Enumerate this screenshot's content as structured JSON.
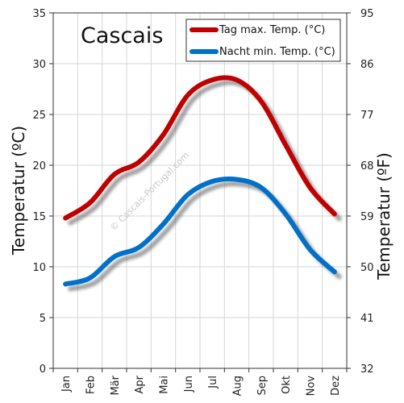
{
  "chart_data": {
    "type": "line",
    "title": "Cascais",
    "categories": [
      "Jan",
      "Feb",
      "Mär",
      "Apr",
      "Mai",
      "Jun",
      "Jul",
      "Aug",
      "Sep",
      "Okt",
      "Nov",
      "Dez"
    ],
    "series": [
      {
        "name": "Tag max. Temp. (°C)",
        "color": "#c00000",
        "values": [
          14.8,
          16.3,
          19.1,
          20.3,
          23.0,
          26.9,
          28.4,
          28.4,
          26.3,
          22.0,
          17.8,
          15.2
        ]
      },
      {
        "name": "Nacht min. Temp. (°C)",
        "color": "#0070c8",
        "values": [
          8.3,
          8.9,
          11.0,
          11.9,
          14.2,
          17.1,
          18.4,
          18.6,
          17.8,
          15.2,
          11.7,
          9.5
        ]
      }
    ],
    "ylabel": "Temperatur (ºC)",
    "ylabel_right": "Temperatur (ºF)",
    "ylim": [
      0,
      35
    ],
    "yticks": [
      "0",
      "5",
      "10",
      "15",
      "20",
      "25",
      "30",
      "35"
    ],
    "yticks_right": [
      "32",
      "41",
      "50",
      "59",
      "68",
      "77",
      "86",
      "95"
    ],
    "grid": true,
    "legend_position": "top-right",
    "watermark": "© Cascais-Portugal.com"
  }
}
